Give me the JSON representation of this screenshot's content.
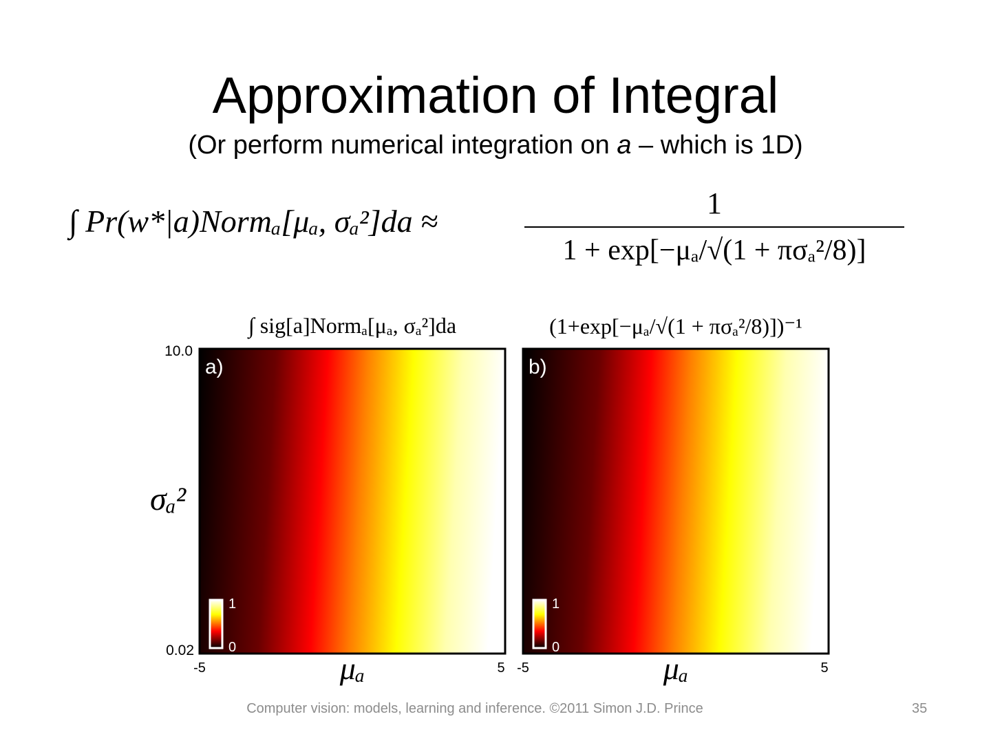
{
  "title": "Approximation of Integral",
  "subtitle": {
    "before": "(Or perform numerical integration on ",
    "italic": "a",
    "after": " – which is 1D)"
  },
  "equation": {
    "lhs": "∫ Pr(w*|a)Normₐ[μₐ, σₐ²]da ≈",
    "numerator": "1",
    "denominator": "1 + exp[−μₐ/√(1 + πσₐ²/8)]"
  },
  "y_axis_label": "σₐ²",
  "panels": [
    {
      "title": "∫ sig[a]Normₐ[μₐ, σₐ²]da",
      "label": "a)",
      "y_top": "10.0",
      "y_bottom": "0.02",
      "x_left": "-5",
      "x_right": "5",
      "x_label": "μₐ",
      "colorbar_max": "1",
      "colorbar_min": "0"
    },
    {
      "title": "(1+exp[−μₐ/√(1 + πσₐ²/8)])⁻¹",
      "label": "b)",
      "x_left": "-5",
      "x_right": "5",
      "x_label": "μₐ",
      "colorbar_max": "1",
      "colorbar_min": "0"
    }
  ],
  "footer": {
    "text": "Computer vision: models, learning and inference.  ©2011 Simon J.D. Prince",
    "page": "35"
  }
}
